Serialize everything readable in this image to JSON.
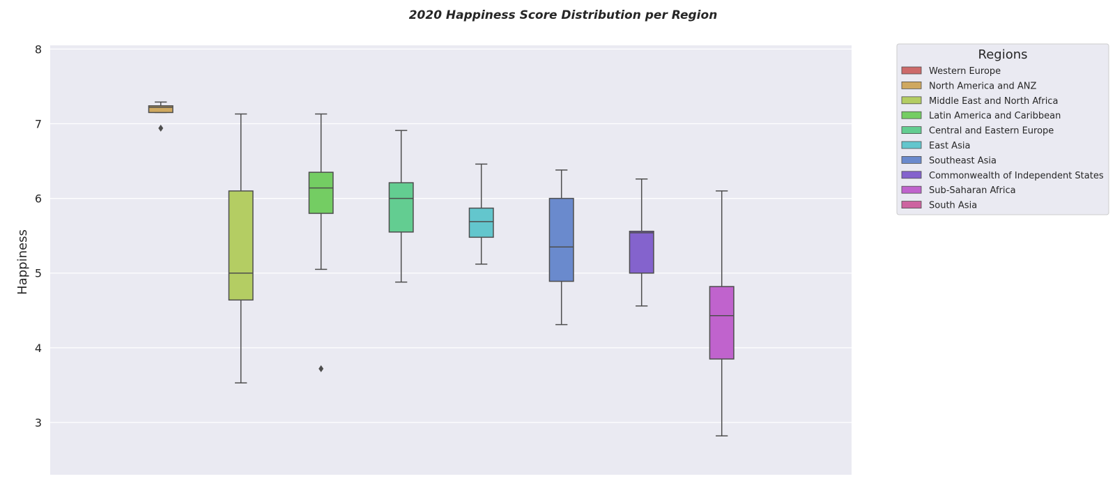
{
  "chart_data": {
    "type": "box",
    "title": "2020 Happiness Score Distribution per Region",
    "xlabel": "",
    "ylabel": "Happiness",
    "ylim": [
      2.3,
      8.05
    ],
    "yticks": [
      3,
      4,
      5,
      6,
      7,
      8
    ],
    "grid": true,
    "legend_title": "Regions",
    "legend_position": "outside-right",
    "background": "#eaeaf2",
    "grid_color": "#ffffff",
    "line_color": "#4d4d4d",
    "series": [
      {
        "name": "Western Europe",
        "color": "#cd6a6a"
      },
      {
        "name": "North America and ANZ",
        "color": "#cfa860",
        "box": {
          "whisker_low": 7.15,
          "q1": 7.15,
          "median": 7.22,
          "q3": 7.24,
          "whisker_high": 7.29,
          "outliers": [
            6.94
          ]
        }
      },
      {
        "name": "Middle East and North Africa",
        "color": "#b4cd63",
        "box": {
          "whisker_low": 3.53,
          "q1": 4.64,
          "median": 5.0,
          "q3": 6.1,
          "whisker_high": 7.13,
          "outliers": []
        }
      },
      {
        "name": "Latin America and Caribbean",
        "color": "#74cd63",
        "box": {
          "whisker_low": 5.05,
          "q1": 5.8,
          "median": 6.14,
          "q3": 6.35,
          "whisker_high": 7.13,
          "outliers": [
            3.72
          ]
        }
      },
      {
        "name": "Central and Eastern Europe",
        "color": "#63cd91",
        "box": {
          "whisker_low": 4.88,
          "q1": 5.55,
          "median": 6.0,
          "q3": 6.21,
          "whisker_high": 6.91,
          "outliers": []
        }
      },
      {
        "name": "East Asia",
        "color": "#63c6cd",
        "box": {
          "whisker_low": 5.12,
          "q1": 5.48,
          "median": 5.69,
          "q3": 5.87,
          "whisker_high": 6.46,
          "outliers": []
        }
      },
      {
        "name": "Southeast Asia",
        "color": "#6a8acd",
        "box": {
          "whisker_low": 4.31,
          "q1": 4.89,
          "median": 5.35,
          "q3": 6.0,
          "whisker_high": 6.38,
          "outliers": []
        }
      },
      {
        "name": "Commonwealth of Independent States",
        "color": "#8463cd",
        "box": {
          "whisker_low": 4.56,
          "q1": 5.0,
          "median": 5.54,
          "q3": 5.56,
          "whisker_high": 6.26,
          "outliers": []
        }
      },
      {
        "name": "Sub-Saharan Africa",
        "color": "#c063cd",
        "box": {
          "whisker_low": 2.82,
          "q1": 3.85,
          "median": 4.43,
          "q3": 4.82,
          "whisker_high": 6.1,
          "outliers": []
        }
      },
      {
        "name": "South Asia",
        "color": "#cd63a0"
      }
    ]
  }
}
